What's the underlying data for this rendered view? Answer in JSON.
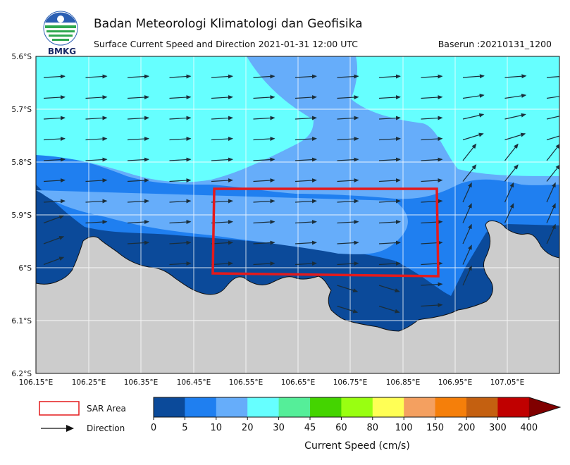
{
  "header": {
    "logo_text": "BMKG",
    "title": "Badan Meteorologi Klimatologi dan Geofisika",
    "subtitle": "Surface Current Speed and Direction 2021-01-31 12:00 UTC",
    "baserun": "Baserun :20210131_1200"
  },
  "map": {
    "lat_ticks": [
      "5.6°S",
      "5.7°S",
      "5.8°S",
      "5.9°S",
      "6°S",
      "6.1°S",
      "6.2°S"
    ],
    "lon_ticks": [
      "106.15°E",
      "106.25°E",
      "106.35°E",
      "106.45°E",
      "106.55°E",
      "106.65°E",
      "106.75°E",
      "106.85°E",
      "106.95°E",
      "107.05°E"
    ],
    "land_color": "#cccccc",
    "sar_color": "#e41a1c",
    "arrow_color": "#1a2e3b"
  },
  "legend": {
    "sar_label": "SAR Area",
    "direction_label": "Direction"
  },
  "colorbar": {
    "title": "Current Speed (cm/s)",
    "levels": [
      "0",
      "5",
      "10",
      "20",
      "30",
      "45",
      "60",
      "80",
      "100",
      "150",
      "200",
      "300",
      "400"
    ],
    "colors": [
      "#0b4a9a",
      "#1f7ff0",
      "#66adfa",
      "#66ffff",
      "#55ee99",
      "#44d400",
      "#99ff11",
      "#ffff55",
      "#f4a060",
      "#f57f0a",
      "#c46010",
      "#c00000",
      "#800000"
    ]
  }
}
